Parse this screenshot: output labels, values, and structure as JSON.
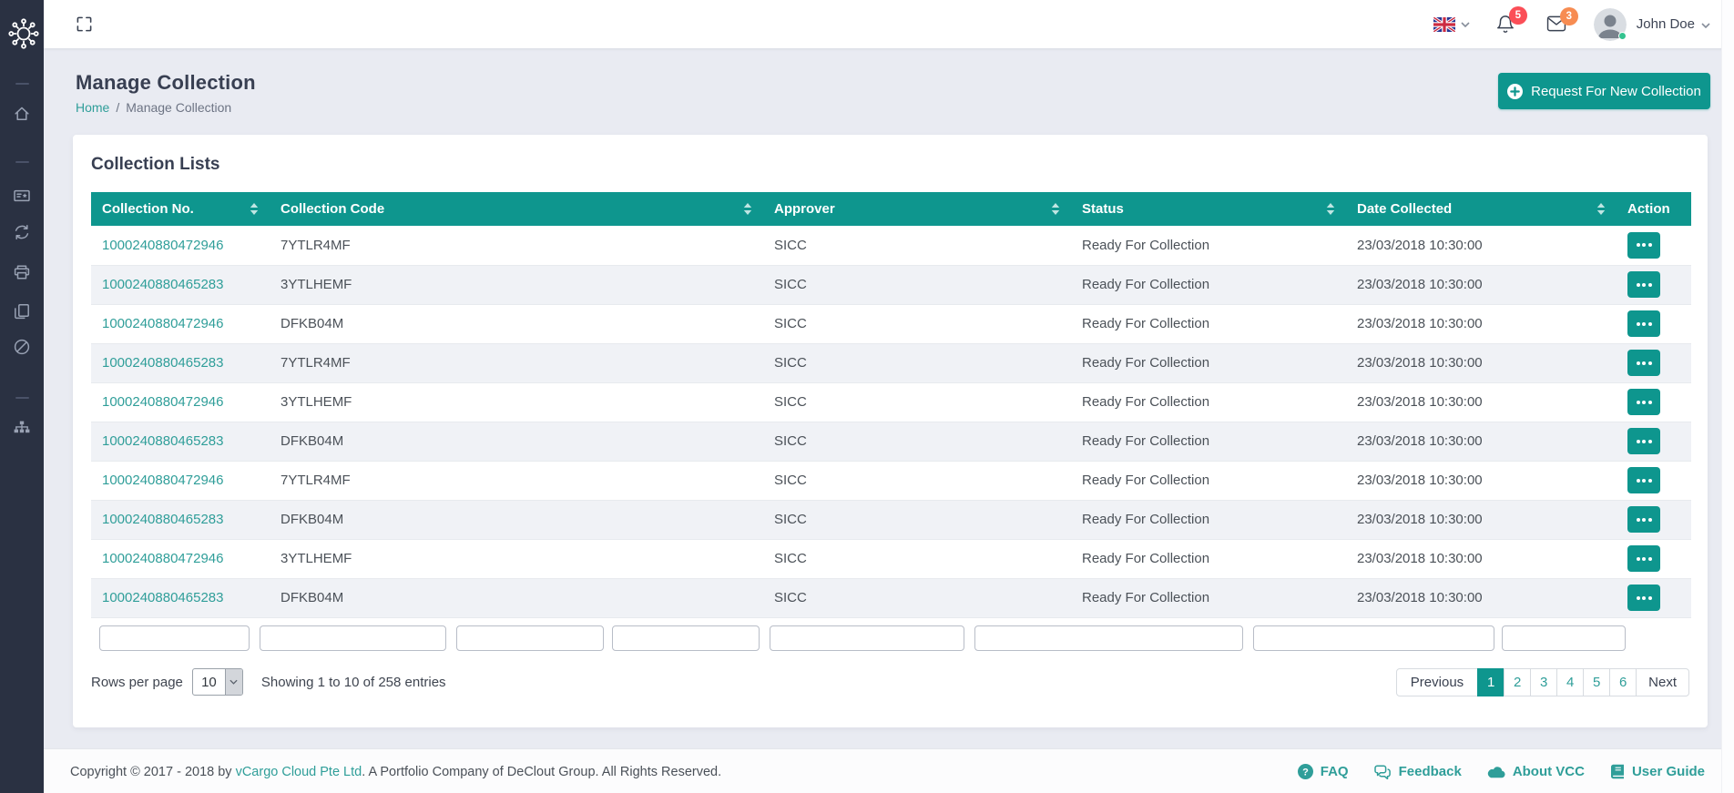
{
  "topbar": {
    "language_flag": "united-kingdom",
    "notifications_badge": "5",
    "messages_badge": "3",
    "user_name": "John Doe"
  },
  "page": {
    "title": "Manage Collection",
    "breadcrumb_home": "Home",
    "breadcrumb_separator": "/",
    "breadcrumb_current": "Manage Collection",
    "request_button": "Request For New Collection"
  },
  "sidebar": {
    "items": [
      {
        "icon": "home-icon"
      },
      {
        "icon": "certificate-icon"
      },
      {
        "icon": "sync-icon"
      },
      {
        "icon": "printer-icon"
      },
      {
        "icon": "copy-icon"
      },
      {
        "icon": "ban-icon"
      },
      {
        "icon": "sitemap-icon"
      }
    ]
  },
  "card": {
    "title": "Collection Lists",
    "table": {
      "columns": [
        {
          "label": "Collection No.",
          "sortable": true
        },
        {
          "label": "Collection Code",
          "sortable": true
        },
        {
          "label": "Approver",
          "sortable": true
        },
        {
          "label": "Status",
          "sortable": true
        },
        {
          "label": "Date Collected",
          "sortable": true
        },
        {
          "label": "Action",
          "sortable": false
        }
      ],
      "rows": [
        {
          "collection_no": "1000240880472946",
          "collection_code": "7YTLR4MF",
          "approver": "SICC",
          "status": "Ready For Collection",
          "date_collected": "23/03/2018 10:30:00"
        },
        {
          "collection_no": "1000240880465283",
          "collection_code": "3YTLHEMF",
          "approver": "SICC",
          "status": "Ready For Collection",
          "date_collected": "23/03/2018 10:30:00"
        },
        {
          "collection_no": "1000240880472946",
          "collection_code": "DFKB04M",
          "approver": "SICC",
          "status": "Ready For Collection",
          "date_collected": "23/03/2018 10:30:00"
        },
        {
          "collection_no": "1000240880465283",
          "collection_code": "7YTLR4MF",
          "approver": "SICC",
          "status": "Ready For Collection",
          "date_collected": "23/03/2018 10:30:00"
        },
        {
          "collection_no": "1000240880472946",
          "collection_code": "3YTLHEMF",
          "approver": "SICC",
          "status": "Ready For Collection",
          "date_collected": "23/03/2018 10:30:00"
        },
        {
          "collection_no": "1000240880465283",
          "collection_code": "DFKB04M",
          "approver": "SICC",
          "status": "Ready For Collection",
          "date_collected": "23/03/2018 10:30:00"
        },
        {
          "collection_no": "1000240880472946",
          "collection_code": "7YTLR4MF",
          "approver": "SICC",
          "status": "Ready For Collection",
          "date_collected": "23/03/2018 10:30:00"
        },
        {
          "collection_no": "1000240880465283",
          "collection_code": "DFKB04M",
          "approver": "SICC",
          "status": "Ready For Collection",
          "date_collected": "23/03/2018 10:30:00"
        },
        {
          "collection_no": "1000240880472946",
          "collection_code": "3YTLHEMF",
          "approver": "SICC",
          "status": "Ready For Collection",
          "date_collected": "23/03/2018 10:30:00"
        },
        {
          "collection_no": "1000240880465283",
          "collection_code": "DFKB04M",
          "approver": "SICC",
          "status": "Ready For Collection",
          "date_collected": "23/03/2018 10:30:00"
        }
      ]
    },
    "rows_per_page_label": "Rows per page",
    "rows_per_page_value": "10",
    "showing_text": "Showing 1 to 10 of 258 entries",
    "pagination": {
      "previous_label": "Previous",
      "pages": [
        "1",
        "2",
        "3",
        "4",
        "5",
        "6"
      ],
      "active_page": "1",
      "next_label": "Next"
    }
  },
  "footer": {
    "copyright_prefix": "Copyright © 2017 - 2018 by ",
    "company_link": "vCargo Cloud Pte Ltd",
    "copyright_suffix": ". A Portfolio Company of DeClout Group. All Rights Reserved.",
    "links": [
      {
        "icon": "question-circle-icon",
        "label": "FAQ"
      },
      {
        "icon": "comments-icon",
        "label": "Feedback"
      },
      {
        "icon": "cloud-icon",
        "label": "About VCC"
      },
      {
        "icon": "book-icon",
        "label": "User Guide"
      }
    ]
  },
  "colors": {
    "primary_teal": "#0e968e",
    "link_teal": "#2f9e99",
    "sidebar_bg": "#2a3142",
    "badge_red": "#fb4e57",
    "badge_orange": "#f78c52",
    "online_green": "#34c38f",
    "row_stripe": "#f0f2f6",
    "page_background": "#e9ebf2"
  }
}
